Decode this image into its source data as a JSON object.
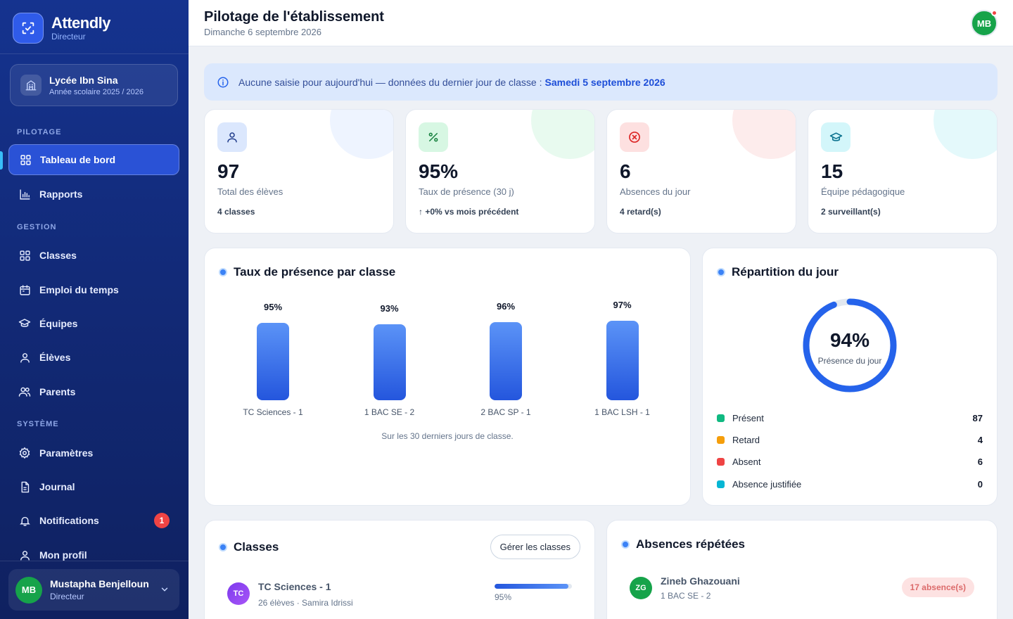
{
  "app": {
    "name": "Attendly",
    "role": "Directeur"
  },
  "school": {
    "name": "Lycée Ibn Sina",
    "year": "Année scolaire 2025 / 2026"
  },
  "sidebar": {
    "sections": {
      "pilotage": "PILOTAGE",
      "gestion": "GESTION",
      "systeme": "SYSTÈME"
    },
    "items": [
      {
        "label": "Tableau de bord",
        "icon": "grid-icon",
        "active": true
      },
      {
        "label": "Rapports",
        "icon": "bar-chart-icon"
      },
      {
        "label": "Classes",
        "icon": "grid-icon"
      },
      {
        "label": "Emploi du temps",
        "icon": "calendar-icon"
      },
      {
        "label": "Équipes",
        "icon": "graduation-cap-icon"
      },
      {
        "label": "Élèves",
        "icon": "user-icon"
      },
      {
        "label": "Parents",
        "icon": "users-icon"
      },
      {
        "label": "Paramètres",
        "icon": "gear-icon"
      },
      {
        "label": "Journal",
        "icon": "document-icon"
      },
      {
        "label": "Notifications",
        "icon": "bell-icon",
        "badge": "1"
      },
      {
        "label": "Mon profil",
        "icon": "user-icon"
      }
    ]
  },
  "user": {
    "initials": "MB",
    "name": "Mustapha Benjelloun",
    "role": "Directeur"
  },
  "header": {
    "title": "Pilotage de l'établissement",
    "date": "Dimanche 6 septembre 2026",
    "avatar": "MB"
  },
  "alert": {
    "text": "Aucune saisie pour aujourd'hui — données du dernier jour de classe :",
    "strong": "Samedi 5 septembre 2026"
  },
  "stats": [
    {
      "value": "97",
      "label": "Total des élèves",
      "sub": "4 classes",
      "icon": "user-icon",
      "color": "#3b82f6"
    },
    {
      "value": "95%",
      "label": "Taux de présence (30 j)",
      "sub": "↑  +0% vs mois précédent",
      "icon": "percent-icon",
      "color": "#16a34a"
    },
    {
      "value": "6",
      "label": "Absences du jour",
      "sub": "4 retard(s)",
      "icon": "x-circle-icon",
      "color": "#ef4444"
    },
    {
      "value": "15",
      "label": "Équipe pédagogique",
      "sub": "2 surveillant(s)",
      "icon": "graduation-cap-icon",
      "color": "#06b6d4"
    }
  ],
  "presence_chart": {
    "title": "Taux de présence par classe",
    "note": "Sur les 30 derniers jours de classe.",
    "pct_labels": [
      "95%",
      "93%",
      "96%",
      "97%"
    ]
  },
  "chart_data": {
    "type": "bar",
    "title": "Taux de présence par classe",
    "categories": [
      "TC Sciences - 1",
      "1 BAC SE - 2",
      "2 BAC SP - 1",
      "1 BAC LSH - 1"
    ],
    "values": [
      95,
      93,
      96,
      97
    ],
    "ylim": [
      0,
      100
    ]
  },
  "repartition": {
    "title": "Répartition du jour",
    "center_value": "94%",
    "center_label": "Présence du jour",
    "percent": 94,
    "legend": [
      {
        "label": "Présent",
        "value": "87",
        "color": "#10b981"
      },
      {
        "label": "Retard",
        "value": "4",
        "color": "#f59e0b"
      },
      {
        "label": "Absent",
        "value": "6",
        "color": "#ef4444"
      },
      {
        "label": "Absence justifiée",
        "value": "0",
        "color": "#06b6d4"
      }
    ]
  },
  "classes_card": {
    "title": "Classes",
    "button": "Gérer les classes",
    "rows": [
      {
        "initials": "TC",
        "name": "TC Sciences - 1",
        "sub": "26 élèves · Samira Idrissi",
        "pct": "95%",
        "pct_value": 95
      }
    ]
  },
  "absences_card": {
    "title": "Absences répétées",
    "rows": [
      {
        "initials": "ZG",
        "name": "Zineb Ghazouani",
        "sub": "1 BAC SE - 2",
        "count": "17 absence(s)"
      }
    ]
  }
}
